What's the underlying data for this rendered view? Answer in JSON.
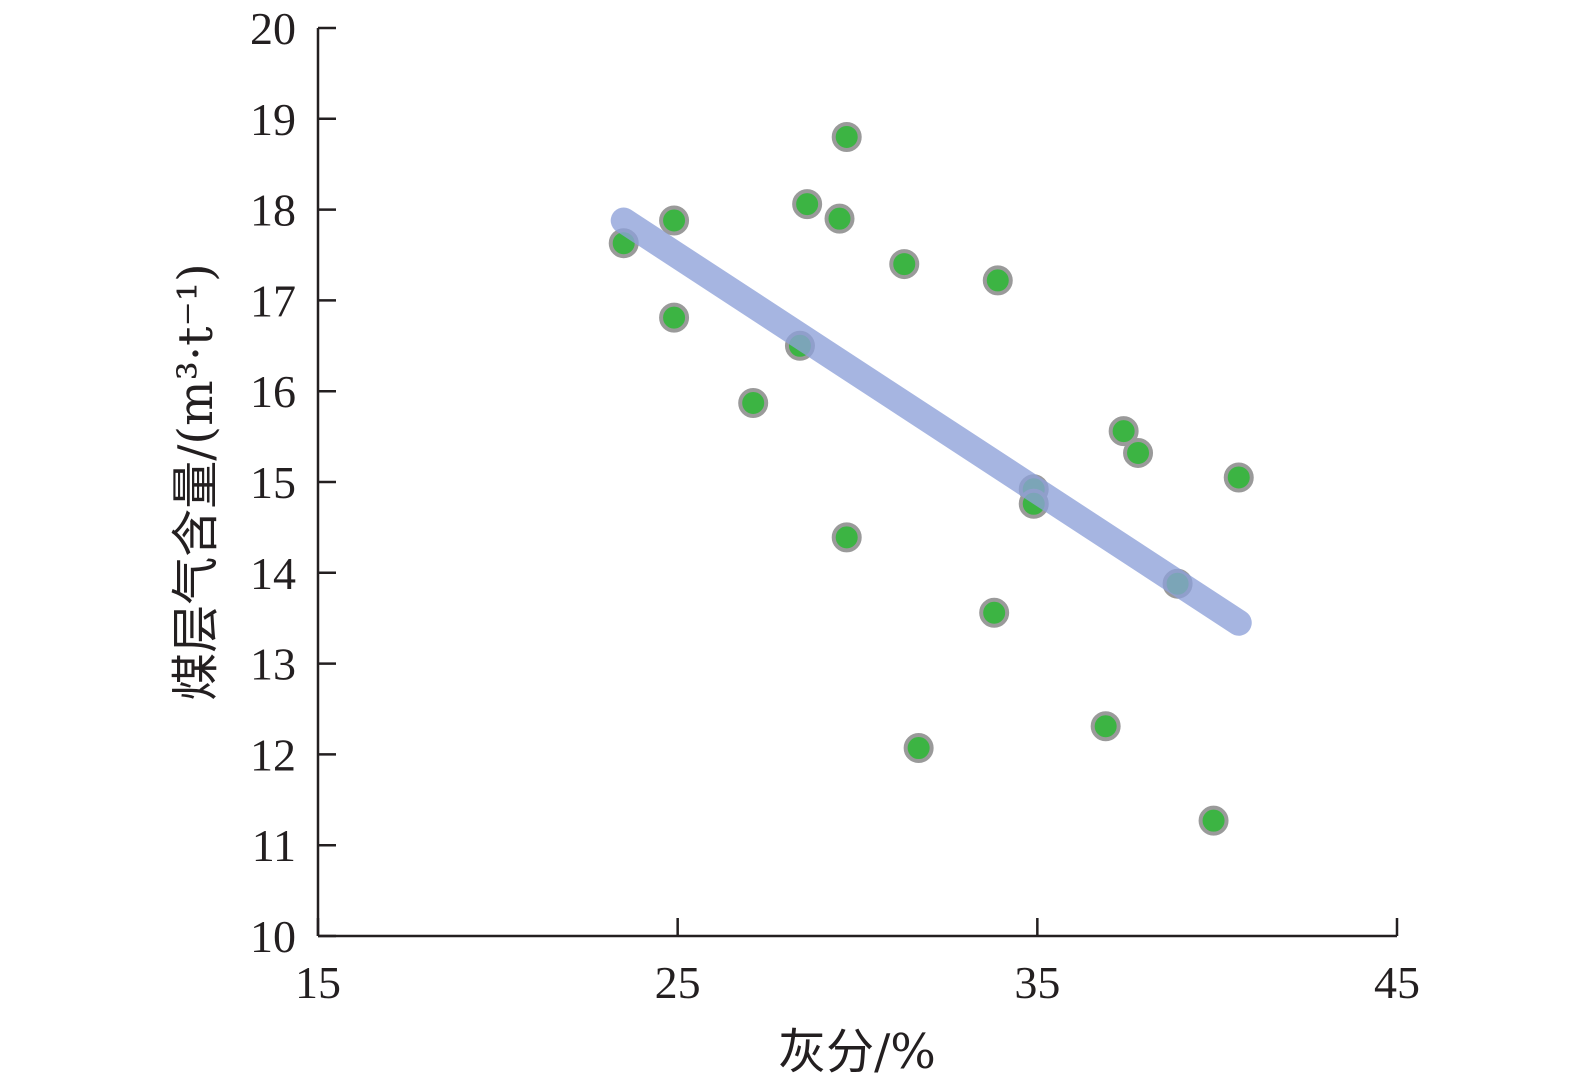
{
  "chart_data": {
    "type": "scatter",
    "xlabel": "灰分/%",
    "ylabel": "煤层气含量/(m³·t⁻¹)",
    "xlim": [
      15,
      45
    ],
    "ylim": [
      10,
      20
    ],
    "x_ticks": [
      15,
      25,
      35,
      45
    ],
    "y_ticks": [
      10,
      11,
      12,
      13,
      14,
      15,
      16,
      17,
      18,
      19,
      20
    ],
    "grid": false,
    "colors": {
      "points": "#3cb443",
      "point_edge": "#9a9a9a",
      "trend_line": "#8da0d8",
      "axes": "#231f20"
    },
    "series": [
      {
        "points": [
          {
            "x": 23.5,
            "y": 17.63
          },
          {
            "x": 24.9,
            "y": 17.88
          },
          {
            "x": 24.9,
            "y": 16.81
          },
          {
            "x": 27.1,
            "y": 15.87
          },
          {
            "x": 28.4,
            "y": 16.5
          },
          {
            "x": 28.6,
            "y": 18.06
          },
          {
            "x": 29.5,
            "y": 17.9
          },
          {
            "x": 29.7,
            "y": 18.8
          },
          {
            "x": 29.7,
            "y": 14.39
          },
          {
            "x": 31.3,
            "y": 17.4
          },
          {
            "x": 31.7,
            "y": 12.07
          },
          {
            "x": 33.8,
            "y": 13.56
          },
          {
            "x": 33.9,
            "y": 17.22
          },
          {
            "x": 34.9,
            "y": 14.92
          },
          {
            "x": 34.9,
            "y": 14.76
          },
          {
            "x": 36.9,
            "y": 12.31
          },
          {
            "x": 37.4,
            "y": 15.56
          },
          {
            "x": 37.8,
            "y": 15.32
          },
          {
            "x": 38.9,
            "y": 13.88
          },
          {
            "x": 39.9,
            "y": 11.27
          },
          {
            "x": 40.6,
            "y": 15.05
          }
        ]
      }
    ],
    "trend_line": {
      "x": [
        23.5,
        40.6
      ],
      "y": [
        17.88,
        13.45
      ]
    }
  }
}
